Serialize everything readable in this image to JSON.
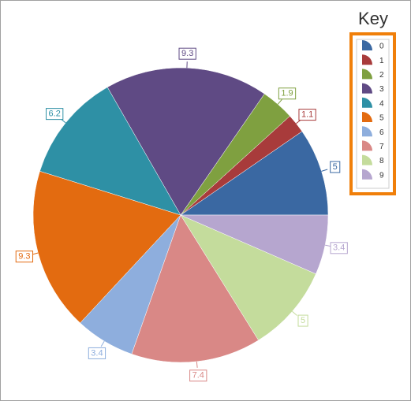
{
  "chart_data": {
    "type": "pie",
    "legend_title": "Key",
    "categories": [
      "0",
      "1",
      "2",
      "3",
      "4",
      "5",
      "6",
      "7",
      "8",
      "9"
    ],
    "values": [
      5,
      1.1,
      1.9,
      9.3,
      6.2,
      9.3,
      3.4,
      7.4,
      5,
      3.4
    ],
    "colors": [
      "#3a68a2",
      "#a83b3b",
      "#7fa040",
      "#5f4a84",
      "#2e90a5",
      "#e36b10",
      "#8eaedd",
      "#d98886",
      "#c4dc9c",
      "#b6a6cf"
    ],
    "legend": "top-right"
  }
}
